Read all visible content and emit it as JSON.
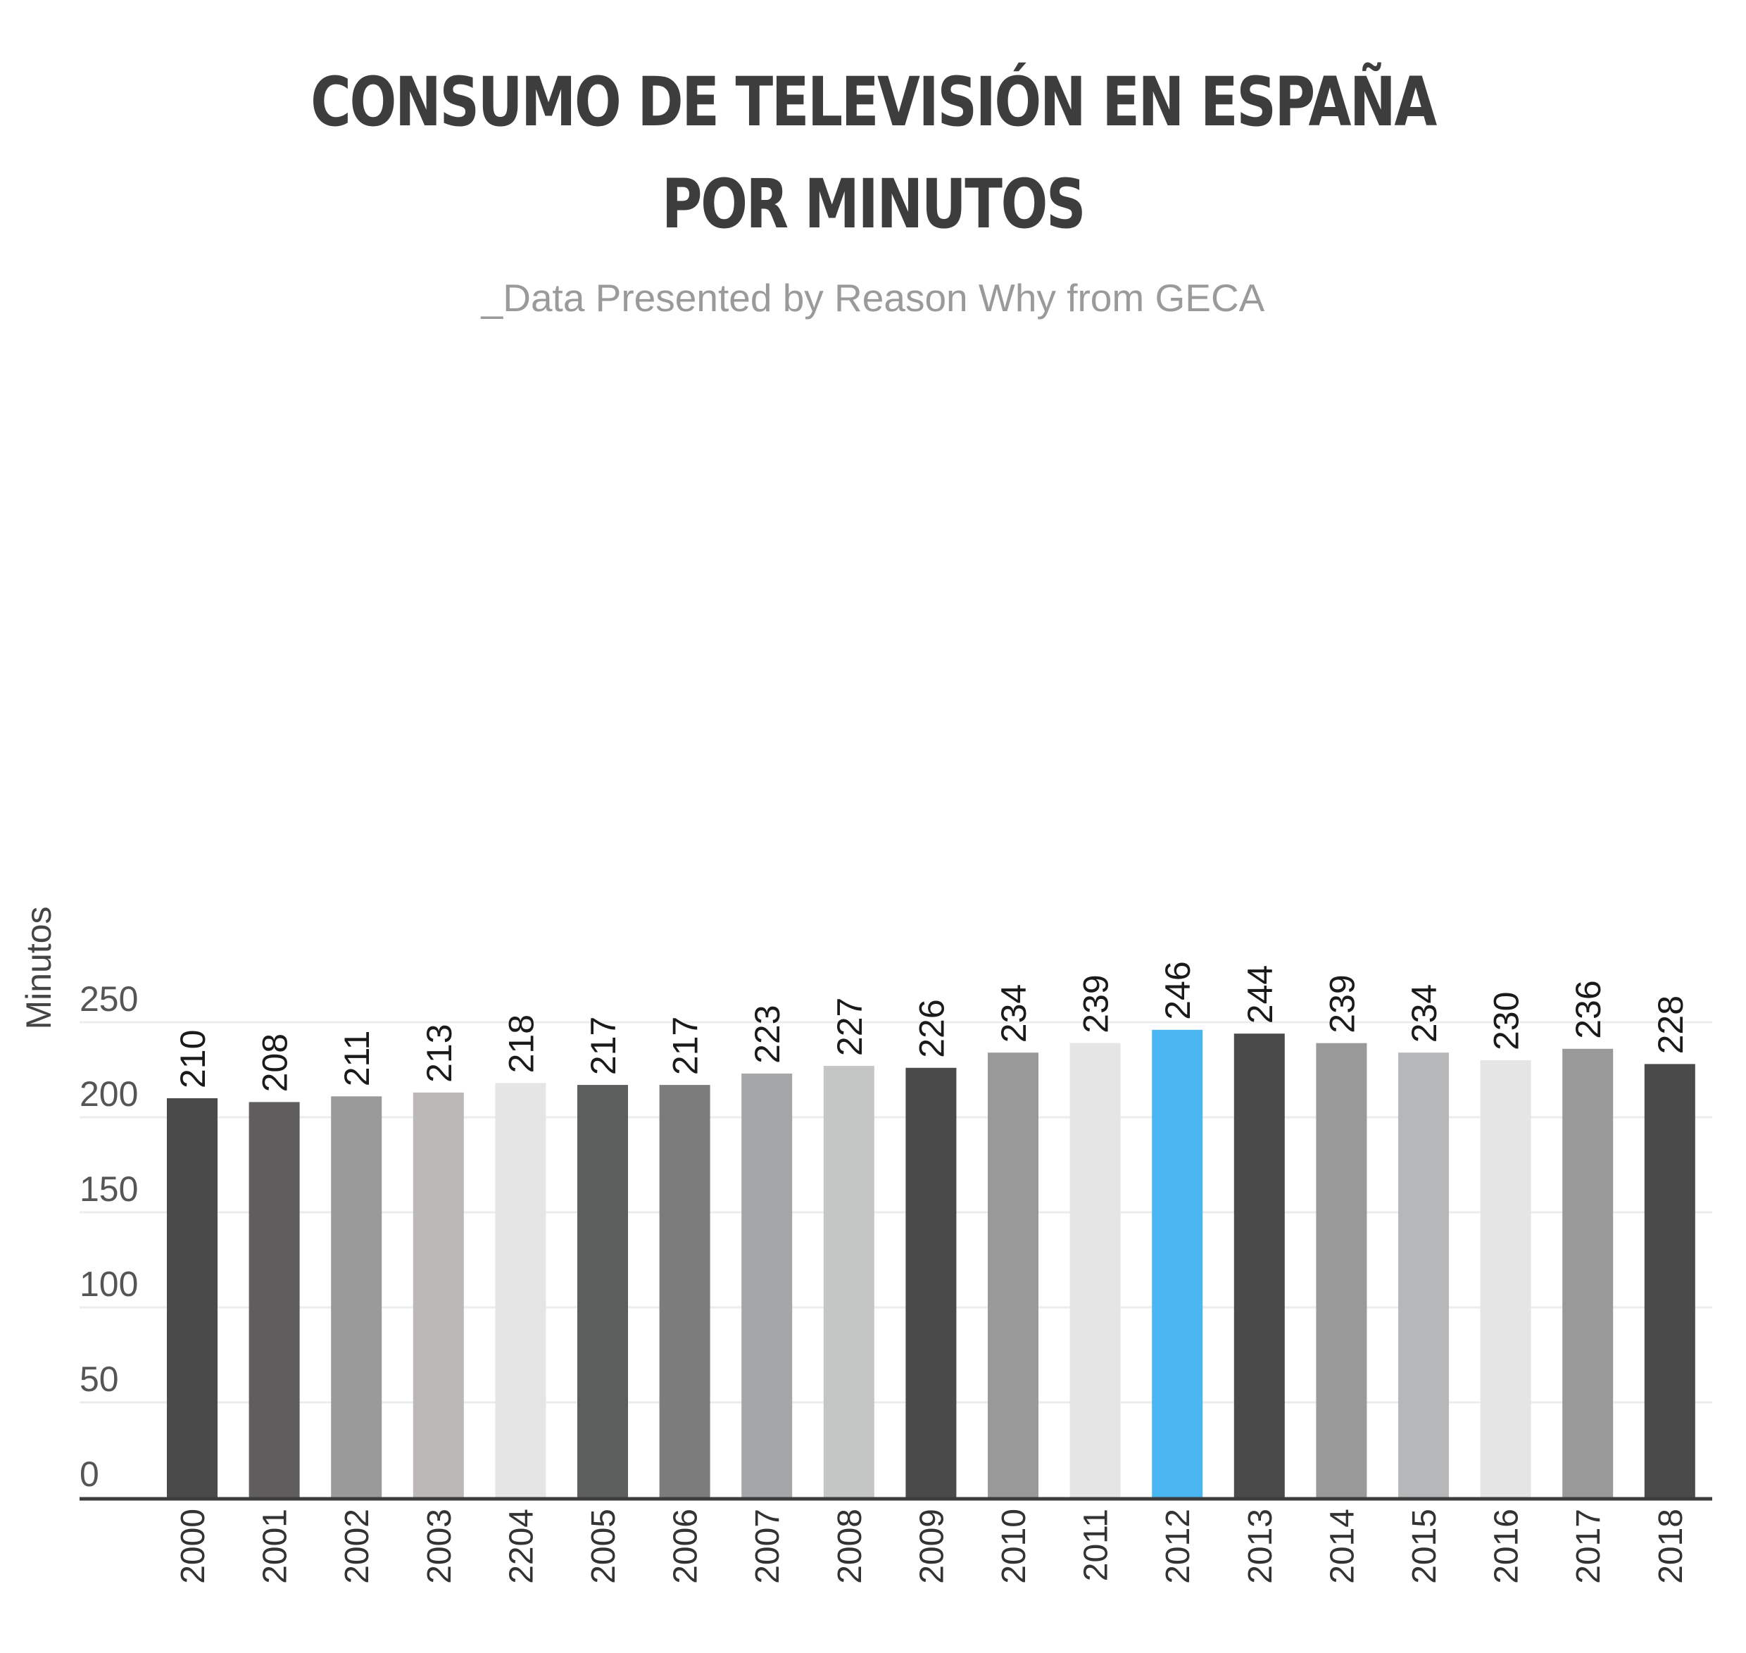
{
  "chart_data": {
    "type": "bar",
    "title_line1": "CONSUMO DE TELEVISIÓN EN ESPAÑA",
    "title_line2": "POR MINUTOS",
    "subtitle": "_Data Presented by Reason Why from GECA",
    "ylabel": "Minutos",
    "xlabel": "",
    "ylim": [
      0,
      250
    ],
    "yticks": [
      0,
      50,
      100,
      150,
      200,
      250
    ],
    "grid": true,
    "categories": [
      "2000",
      "2001",
      "2002",
      "2003",
      "2204",
      "2005",
      "2006",
      "2007",
      "2008",
      "2009",
      "2010",
      "2011",
      "2012",
      "2013",
      "2014",
      "2015",
      "2016",
      "2017",
      "2018"
    ],
    "values": [
      210,
      208,
      211,
      213,
      218,
      217,
      217,
      223,
      227,
      226,
      234,
      239,
      246,
      244,
      239,
      234,
      230,
      236,
      228
    ],
    "colors": [
      "#4a4a4a",
      "#5f5d5e",
      "#9a9a9a",
      "#bcb8b7",
      "#e5e5e5",
      "#5c5e5d",
      "#7c7c7c",
      "#a5a6a8",
      "#c4c5c5",
      "#4a4a4a",
      "#999999",
      "#e5e5e5",
      "#4bb7f2",
      "#4a4a4a",
      "#999999",
      "#b5b7b8",
      "#e5e5e5",
      "#999999",
      "#4a4a4a"
    ],
    "grid_color": "#ececec",
    "axis_color": "#3d3d3d"
  }
}
